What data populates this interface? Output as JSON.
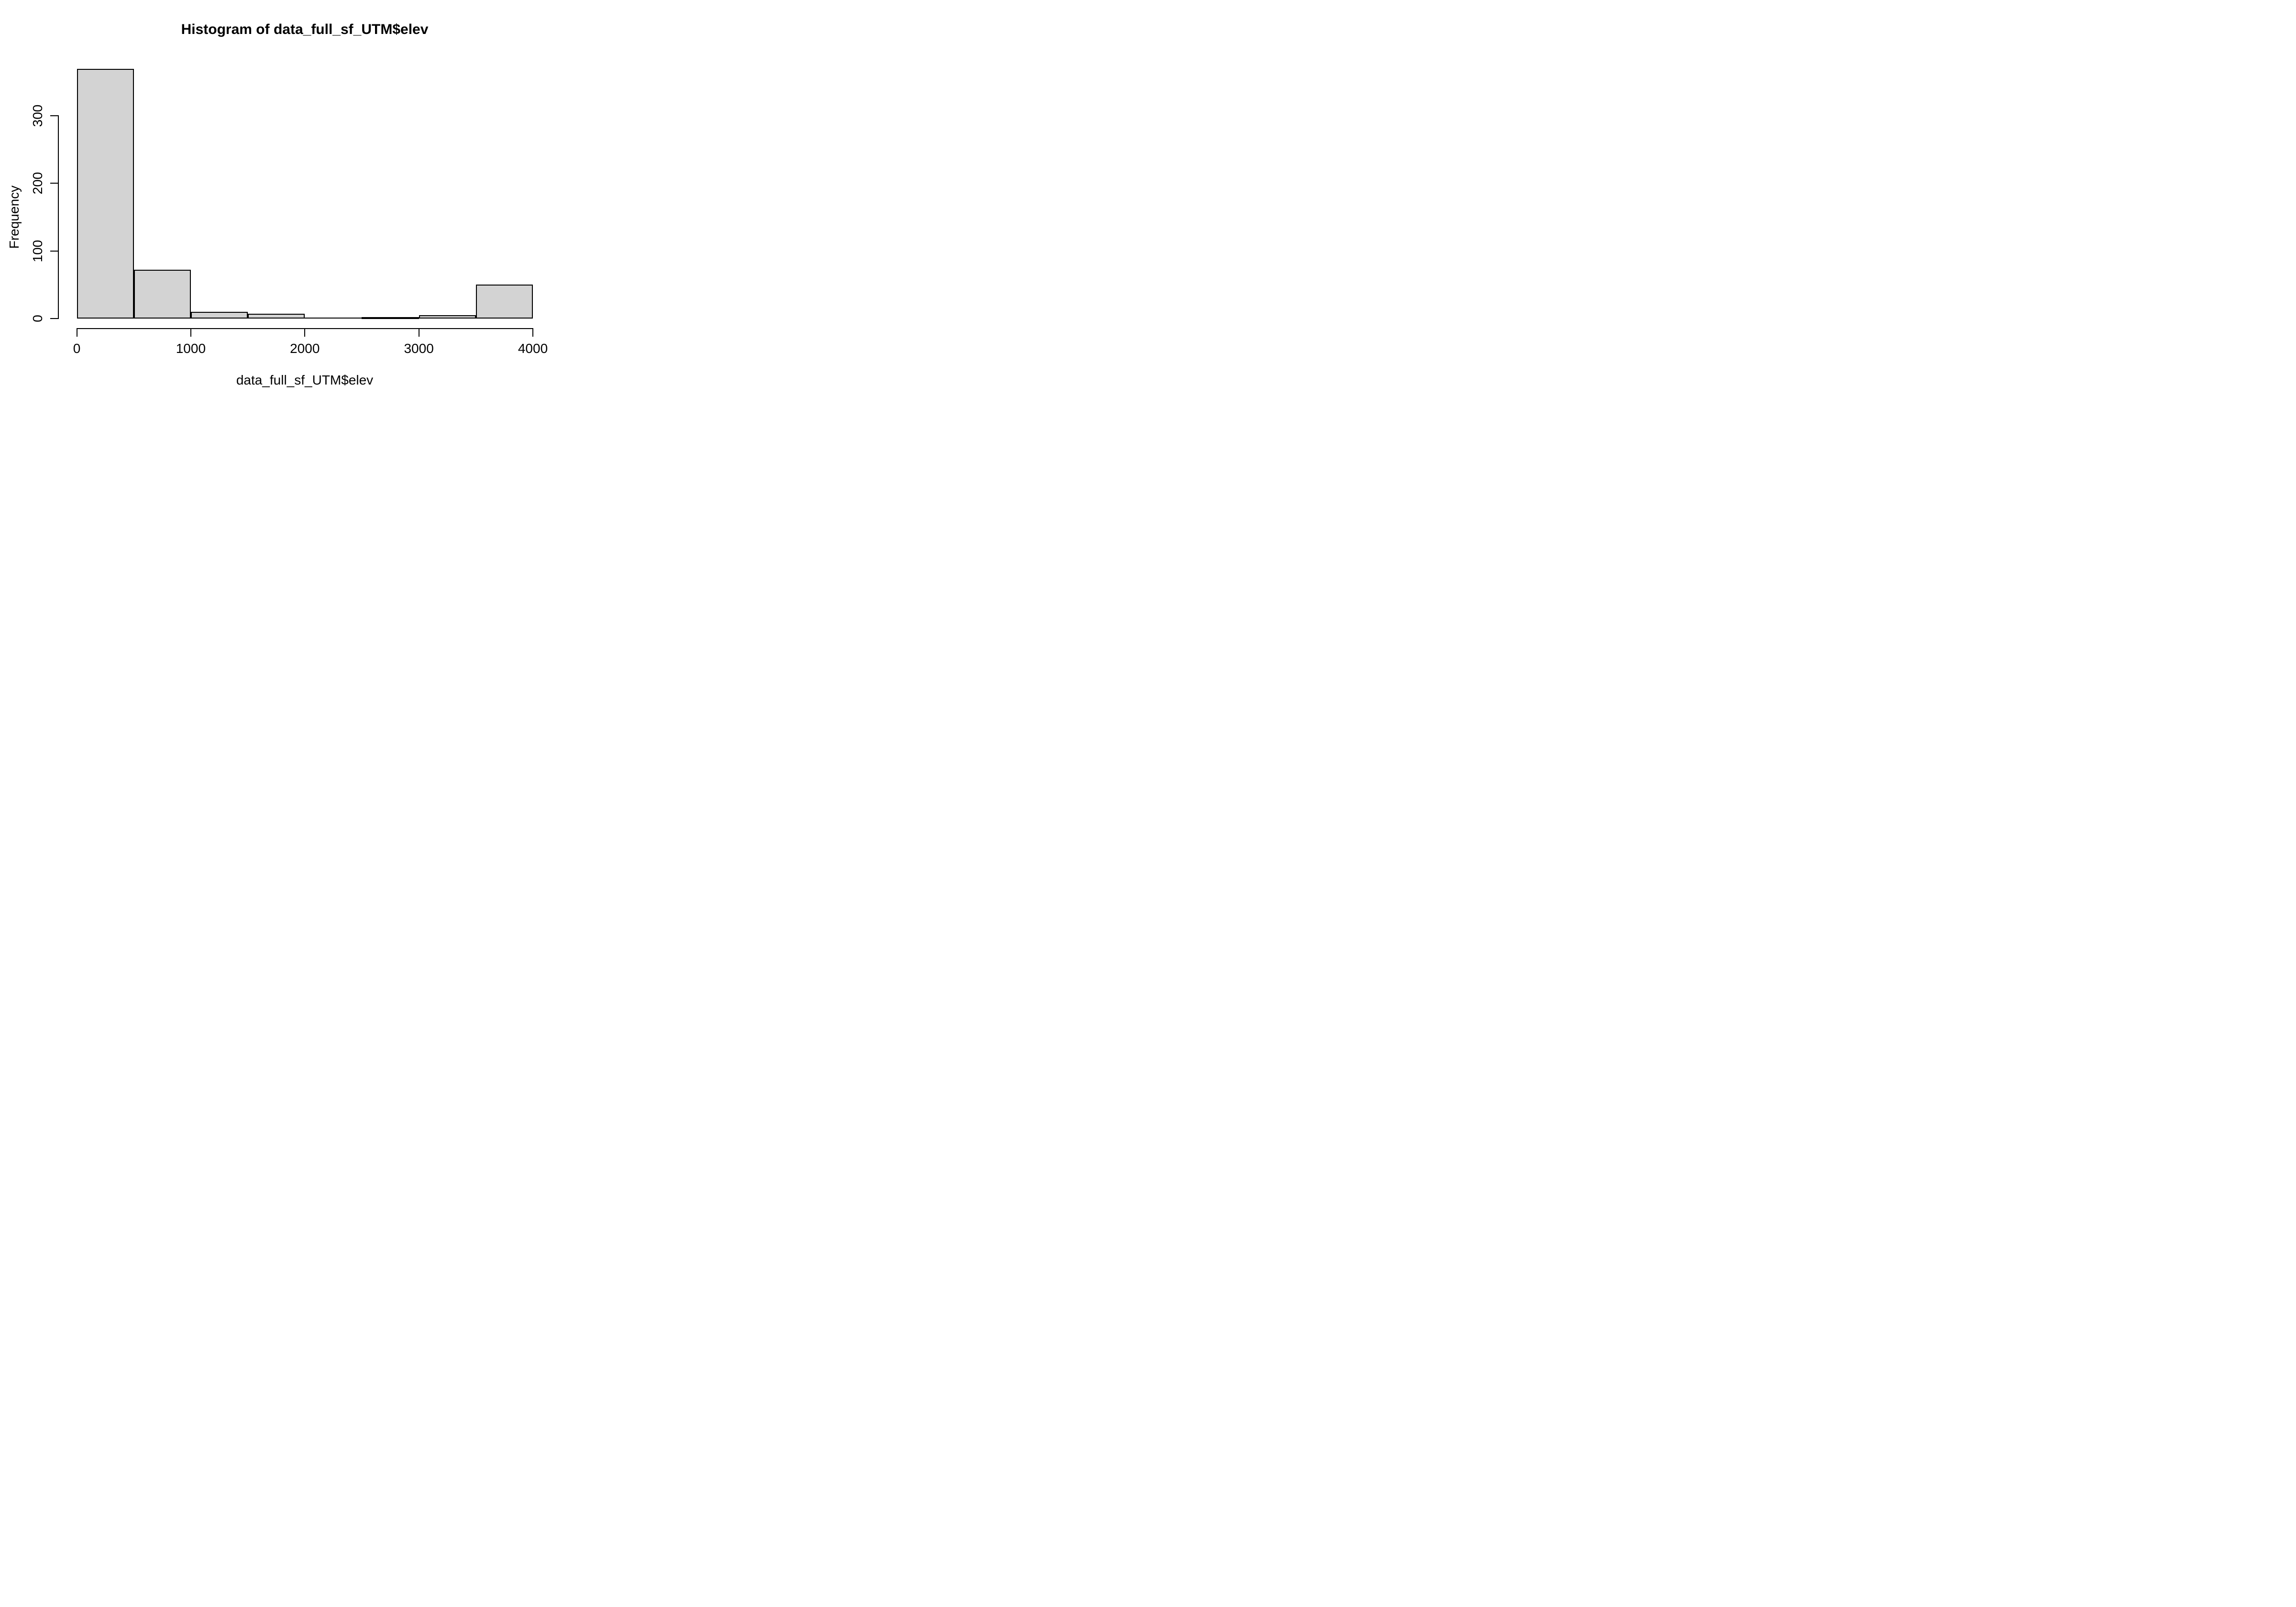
{
  "chart_data": {
    "type": "bar",
    "subtype": "histogram",
    "title": "Histogram of data_full_sf_UTM$elev",
    "xlabel": "data_full_sf_UTM$elev",
    "ylabel": "Frequency",
    "bin_edges": [
      0,
      500,
      1000,
      1500,
      2000,
      2500,
      3000,
      3500,
      4000
    ],
    "counts": [
      369,
      72,
      10,
      7,
      0,
      2,
      5,
      50
    ],
    "x_ticks": [
      0,
      1000,
      2000,
      3000,
      4000
    ],
    "x_tick_labels": [
      "0",
      "1000",
      "2000",
      "3000",
      "4000"
    ],
    "y_ticks": [
      0,
      100,
      200,
      300
    ],
    "y_tick_labels": [
      "0",
      "100",
      "200",
      "300"
    ],
    "xlim": [
      0,
      4000
    ],
    "ylim": [
      0,
      370
    ],
    "grid": false,
    "legend": "none",
    "bar_fill": "#D3D3D3",
    "bar_border": "#000000",
    "axis_color": "#000000",
    "text_color": "#000000",
    "background": "#FFFFFF"
  }
}
